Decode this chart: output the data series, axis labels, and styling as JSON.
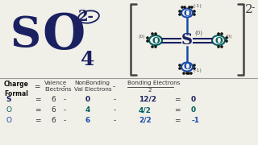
{
  "bg_color": "#f0efe8",
  "dark_blue": "#1a2060",
  "teal": "#006060",
  "mid_blue": "#1a3a9a",
  "bracket_color": "#444444",
  "text_dark": "#222222",
  "formula_S_color": "#1a2060",
  "formula_O_color": "#1a2060",
  "o_double_color": "#006060",
  "o_single_color": "#1a4aaa",
  "s_diagram_color": "#1a2060",
  "dot_color": "#111111",
  "rows": [
    {
      "atom": "S",
      "atom_color": "#1a2060",
      "val": "6",
      "nonbond": "0",
      "bond": "12/2",
      "result": "0",
      "result_color": "#1a2060"
    },
    {
      "atom": "O",
      "atom_color": "#006060",
      "val": "6",
      "nonbond": "4",
      "bond": "4/2",
      "result": "0",
      "result_color": "#006060"
    },
    {
      "atom": "O",
      "atom_color": "#1a4aaa",
      "val": "6",
      "nonbond": "6",
      "bond": "2/2",
      "result": "-1",
      "result_color": "#1a4aaa"
    }
  ]
}
